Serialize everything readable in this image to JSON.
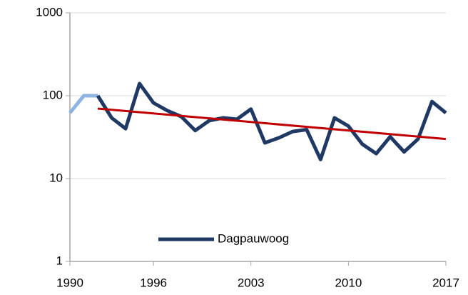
{
  "chart_data": {
    "type": "line",
    "x": [
      1990,
      1991,
      1992,
      1993,
      1994,
      1995,
      1996,
      1997,
      1998,
      1999,
      2000,
      2001,
      2002,
      2003,
      2004,
      2005,
      2006,
      2007,
      2008,
      2009,
      2010,
      2011,
      2012,
      2013,
      2014,
      2015,
      2016,
      2017
    ],
    "series": [
      {
        "name": "Dagpauwoog",
        "color": "#1f3864",
        "values": [
          null,
          null,
          100,
          54,
          40,
          140,
          82,
          66,
          56,
          38,
          50,
          54,
          52,
          69,
          27,
          31,
          37,
          39,
          17,
          54,
          43,
          26,
          20,
          32,
          21,
          30,
          85,
          62
        ]
      },
      {
        "color": "#8db4e2",
        "values": [
          62,
          100,
          100,
          null,
          null,
          null,
          null,
          null,
          null,
          null,
          null,
          null,
          null,
          null,
          null,
          null,
          null,
          null,
          null,
          null,
          null,
          null,
          null,
          null,
          null,
          null,
          null,
          null
        ]
      }
    ],
    "trend": {
      "color": "#c00000",
      "x": [
        1992,
        2017
      ],
      "values": [
        70,
        30
      ]
    },
    "xlim": [
      1990,
      2017
    ],
    "xticks": [
      1990,
      1996,
      2003,
      2010,
      2017
    ],
    "ylim": [
      1,
      1000
    ],
    "yticks": [
      1,
      10,
      100,
      1000
    ],
    "log_y": true,
    "grid": true,
    "legend": "lower center"
  }
}
